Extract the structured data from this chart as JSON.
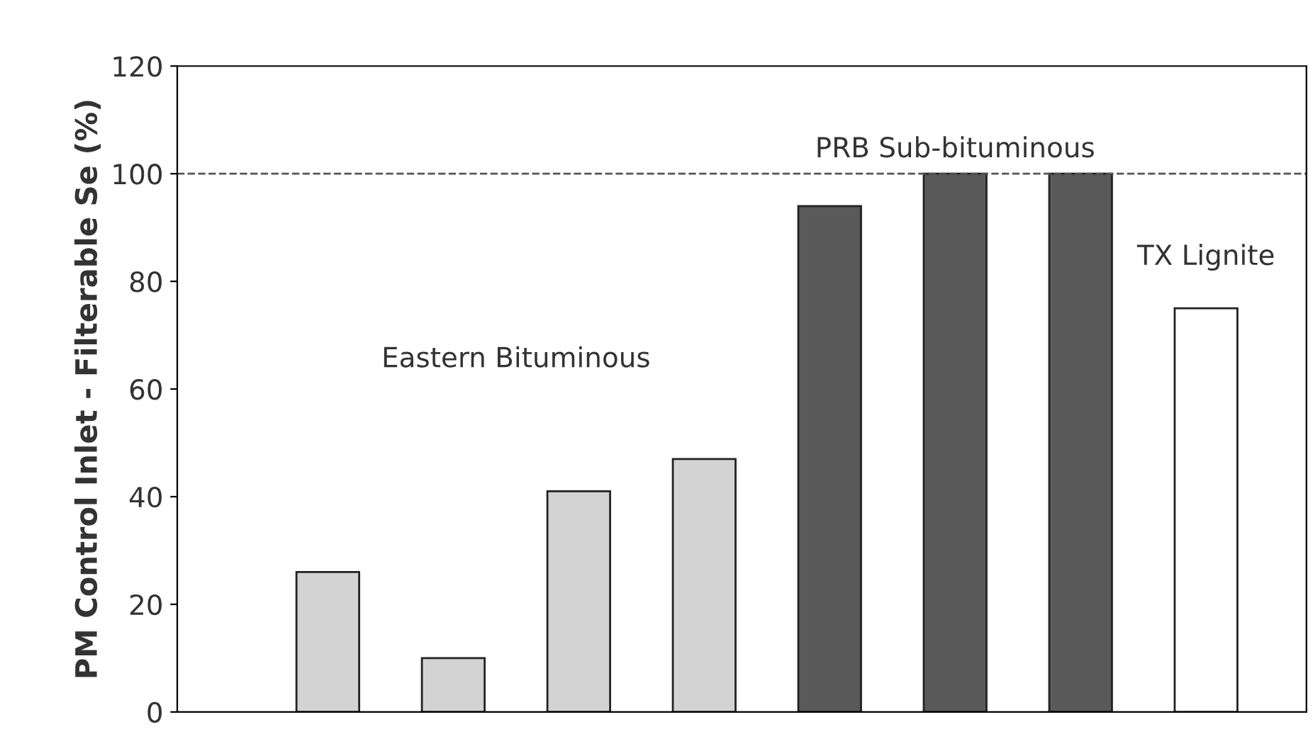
{
  "chart_data": {
    "type": "bar",
    "ylabel": "PM Control Inlet - Filterable Se (%)",
    "categories": [
      null,
      null,
      null,
      null,
      null,
      null,
      null,
      null
    ],
    "values": [
      26,
      10,
      41,
      47,
      94,
      100,
      100,
      75
    ],
    "colors": [
      "#d3d3d3",
      "#d3d3d3",
      "#d3d3d3",
      "#d3d3d3",
      "#595959",
      "#595959",
      "#595959",
      "#ffffff"
    ],
    "ylim": [
      0,
      120
    ],
    "yticks": [
      0,
      20,
      40,
      60,
      80,
      100,
      120
    ],
    "grid": false,
    "legend": false,
    "ref_lines": [
      {
        "axis": "y",
        "value": 100,
        "color": "#555555",
        "line_style": "dashed"
      }
    ],
    "annotations": [
      "Eastern Bituminous",
      "PRB Sub-bituminous",
      "TX Lignite"
    ]
  }
}
